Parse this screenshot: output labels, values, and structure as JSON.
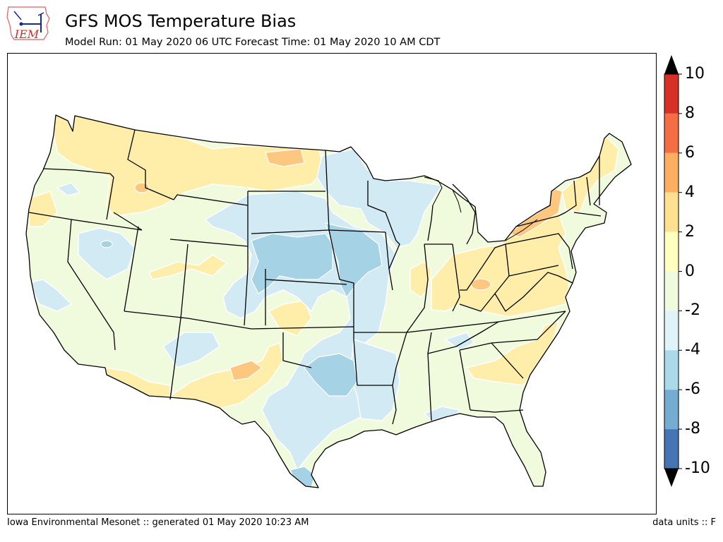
{
  "header": {
    "title": "GFS MOS Temperature Bias",
    "subtitle": "Model Run: 01 May 2020 06 UTC Forecast Time: 01 May 2020 10 AM CDT",
    "logo_text": "IEM"
  },
  "colorbar": {
    "ticks": [
      "10",
      "8",
      "6",
      "4",
      "2",
      "0",
      "-2",
      "-4",
      "-6",
      "-8",
      "-10"
    ],
    "bins": [
      {
        "range": [
          8,
          10
        ],
        "color": "#d73027"
      },
      {
        "range": [
          6,
          8
        ],
        "color": "#f46d43"
      },
      {
        "range": [
          4,
          6
        ],
        "color": "#fdae61"
      },
      {
        "range": [
          2,
          4
        ],
        "color": "#fee090"
      },
      {
        "range": [
          0,
          2
        ],
        "color": "#ffffbf"
      },
      {
        "range": [
          -2,
          0
        ],
        "color": "#f0fadc"
      },
      {
        "range": [
          -4,
          -2
        ],
        "color": "#e0f3f8"
      },
      {
        "range": [
          -6,
          -4
        ],
        "color": "#abd9e9"
      },
      {
        "range": [
          -8,
          -6
        ],
        "color": "#74add1"
      },
      {
        "range": [
          -10,
          -8
        ],
        "color": "#4575b4"
      }
    ],
    "extend": "both"
  },
  "colors": {
    "land_default": "#f0fadc",
    "warm": "#ffeeaa",
    "warmer": "#fdc77f",
    "cool": "#d2eaf3",
    "cooler": "#a6d2e6",
    "state_border": "#000000",
    "contour": "#ffffff"
  },
  "footer": {
    "left": "Iowa Environmental Mesonet :: generated 01 May 2020 10:23 AM",
    "right": "data units :: F"
  }
}
